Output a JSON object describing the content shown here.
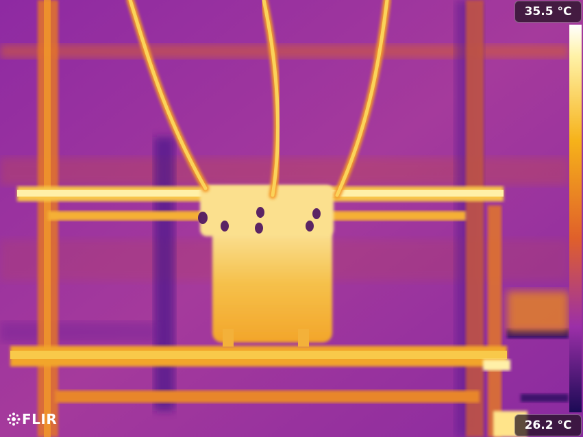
{
  "overlay": {
    "max_temp": "35.5 °C",
    "min_temp": "26.2 °C",
    "brand": "FLIR"
  },
  "palette": {
    "cold": "#3c0a7a",
    "mid": "#9b2fa8",
    "warm": "#e0602a",
    "hot": "#f6b21a",
    "hottest": "#fff2a8"
  },
  "icons": {
    "logo": "flir-logo-icon"
  }
}
